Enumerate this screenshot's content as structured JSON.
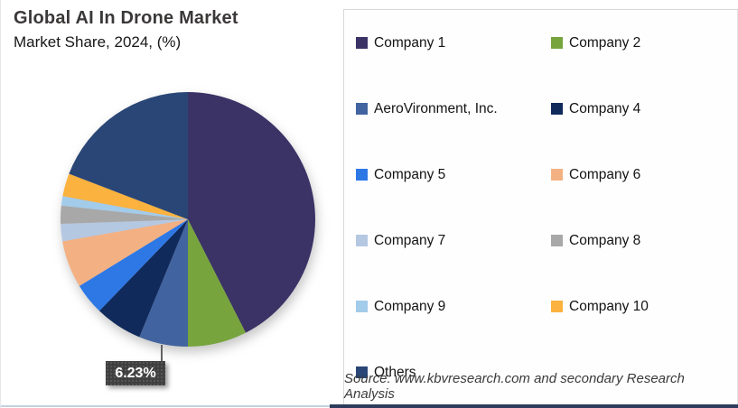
{
  "header": {
    "title": "Global AI In Drone Market",
    "subtitle": "Market Share, 2024, (%)"
  },
  "callout": {
    "label": "6.23%"
  },
  "source_note": "Source: www.kbvresearch.com and secondary Research Analysis",
  "chart_data": {
    "type": "pie",
    "title": "Global AI In Drone Market",
    "subtitle": "Market Share, 2024, (%)",
    "unit": "%",
    "direction": "clockwise",
    "start_angle_deg": 0,
    "legend_position": "right",
    "labels": [
      "Company 1",
      "Company 2",
      "AeroVironment, Inc.",
      "Company 4",
      "Company 5",
      "Company 6",
      "Company 7",
      "Company 8",
      "Company 9",
      "Company 10",
      "Others"
    ],
    "values": [
      42.5,
      7.5,
      6.23,
      6.0,
      4.0,
      6.0,
      2.2,
      2.3,
      1.2,
      2.9,
      19.17
    ],
    "colors": [
      "#3b3266",
      "#77a43d",
      "#41639f",
      "#102a5c",
      "#2e78e6",
      "#f3b183",
      "#b5c8e2",
      "#a8a8a8",
      "#a3cbea",
      "#fbb23e",
      "#2a4676"
    ],
    "annotations": [
      {
        "slice": "AeroVironment, Inc.",
        "text": "6.23%",
        "shown_on_chart": true
      }
    ]
  },
  "styles": {
    "panel_border_color": "#d8d8d8",
    "bottom_bar_color": "#2c3c5a",
    "callout_bg": "#3f3f3f"
  }
}
